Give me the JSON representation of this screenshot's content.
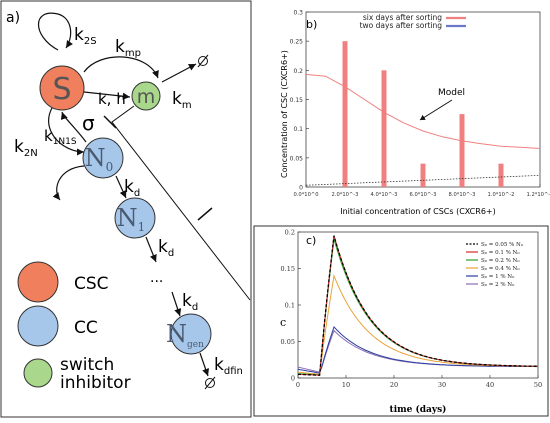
{
  "panel_a": {
    "label": "a)",
    "nodes": {
      "S": "S",
      "m": "m",
      "N0": "N",
      "N0_sub": "0",
      "N1": "N",
      "N1_sub": "1",
      "Ngen": "N",
      "Ngen_sub": "gen"
    },
    "rates": {
      "k2S": "k",
      "k2S_sub": "2S",
      "kmp": "k",
      "kmp_sub": "mp",
      "kh": "k, h",
      "km": "k",
      "km_sub": "m",
      "sigma": "σ",
      "k1N1S": "k",
      "k1N1S_sub": "1N1S",
      "k2N": "k",
      "k2N_sub": "2N",
      "kd1": "k",
      "kd1_sub": "d",
      "kd2": "k",
      "kd2_sub": "d",
      "kd3": "k",
      "kd3_sub": "d",
      "kdfin": "k",
      "kdfin_sub": "dfin",
      "dots": "..."
    },
    "legend": [
      {
        "label": "CSC",
        "color": "#f07f5e"
      },
      {
        "label": "CC",
        "color": "#a6c6ea"
      },
      {
        "label": "switch",
        "label2": "inhibitor",
        "color": "#a9d88c"
      }
    ]
  },
  "chart_data": [
    {
      "panel": "b)",
      "type": "bar",
      "xlabel": "Initial concentration of CSCs (CXCR6+)",
      "ylabel": "Concentration of CSC (CXCR6+)",
      "xlim": [
        0,
        0.012
      ],
      "ylim": [
        0,
        0.3
      ],
      "xticks": [
        "0.0*10^0",
        "2.0*10^-3",
        "4.0*10^-3",
        "6.0*10^-3",
        "8.0*10^-3",
        "1.0*10^-2",
        "1.2*10^-2"
      ],
      "yticks": [
        "0",
        "0.05",
        "0.1",
        "0.15",
        "0.2",
        "0.25",
        "0.3"
      ],
      "bars": {
        "x": [
          0.002,
          0.004,
          0.006,
          0.008,
          0.01
        ],
        "values": [
          0.25,
          0.2,
          0.04,
          0.125,
          0.04
        ]
      },
      "model_curve": {
        "x": [
          0,
          0.001,
          0.002,
          0.003,
          0.004,
          0.005,
          0.006,
          0.007,
          0.008,
          0.009,
          0.01,
          0.011,
          0.012
        ],
        "y": [
          0.193,
          0.19,
          0.172,
          0.15,
          0.128,
          0.11,
          0.096,
          0.086,
          0.079,
          0.074,
          0.07,
          0.068,
          0.066
        ]
      },
      "dotted_line": {
        "x": [
          0,
          0.012
        ],
        "y": [
          0.003,
          0.02
        ]
      },
      "legend": [
        {
          "label": "six days after sorting",
          "color": "#f08080"
        },
        {
          "label": "two days after sorting",
          "color": "#6b78c9"
        }
      ],
      "annotation": "Model"
    },
    {
      "panel": "c)",
      "type": "line",
      "xlabel": "time (days)",
      "ylabel": "c",
      "xlim": [
        0,
        50
      ],
      "ylim": [
        0,
        0.2
      ],
      "xticks": [
        "0",
        "10",
        "20",
        "30",
        "40",
        "50"
      ],
      "yticks": [
        "0",
        "0.05",
        "0.1",
        "0.15",
        "0.2"
      ],
      "series": [
        {
          "name": "S₀ = 0.05 % N₀",
          "color": "#000000",
          "dashed": true,
          "peak": 0.195,
          "start": 0.005
        },
        {
          "name": "S₀ = 0.1 % N₀",
          "color": "#d62728",
          "peak": 0.195,
          "start": 0.005
        },
        {
          "name": "S₀ = 0.2 % N₀",
          "color": "#2ca02c",
          "peak": 0.19,
          "start": 0.006
        },
        {
          "name": "S₀ = 0.4 % N₀",
          "color": "#e8a33a",
          "peak": 0.14,
          "start": 0.008
        },
        {
          "name": "S₀ = 1 % N₀",
          "color": "#2b3f9e",
          "peak": 0.07,
          "start": 0.012
        },
        {
          "name": "S₀ = 2 % N₀",
          "color": "#8c6db5",
          "peak": 0.065,
          "start": 0.015
        }
      ]
    }
  ]
}
